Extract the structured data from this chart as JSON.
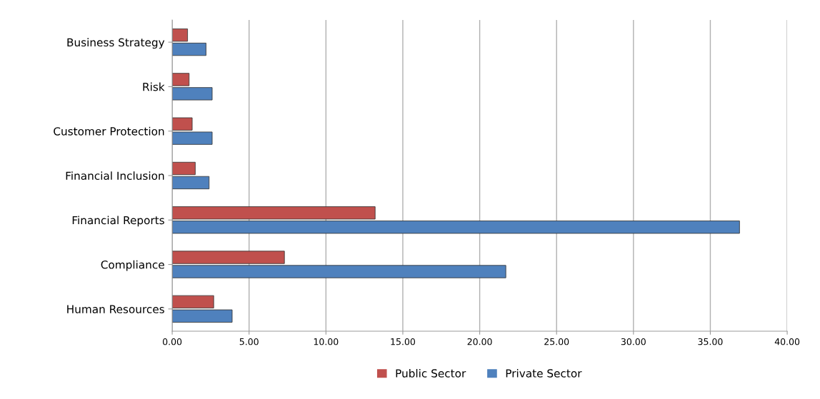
{
  "chart_data": {
    "type": "bar",
    "orientation": "horizontal",
    "categories": [
      "Business Strategy",
      "Risk",
      "Customer Protection",
      "Financial Inclusion",
      "Financial Reports",
      "Compliance",
      "Human Resources"
    ],
    "series": [
      {
        "name": "Public Sector",
        "color": "#c0504d",
        "values": [
          1.0,
          1.1,
          1.3,
          1.5,
          13.2,
          7.3,
          2.7
        ]
      },
      {
        "name": "Private Sector",
        "color": "#4f81bd",
        "values": [
          2.2,
          2.6,
          2.6,
          2.4,
          36.9,
          21.7,
          3.9
        ]
      }
    ],
    "xlim": [
      0,
      40
    ],
    "xticks": [
      {
        "value": 0,
        "label": "0.00"
      },
      {
        "value": 5,
        "label": "5.00"
      },
      {
        "value": 10,
        "label": "10.00"
      },
      {
        "value": 15,
        "label": "15.00"
      },
      {
        "value": 20,
        "label": "20.00"
      },
      {
        "value": 25,
        "label": "25.00"
      },
      {
        "value": 30,
        "label": "30.00"
      },
      {
        "value": 35,
        "label": "35.00"
      },
      {
        "value": 40,
        "label": "40.00"
      }
    ],
    "grid": "x",
    "legend": "bottom"
  }
}
